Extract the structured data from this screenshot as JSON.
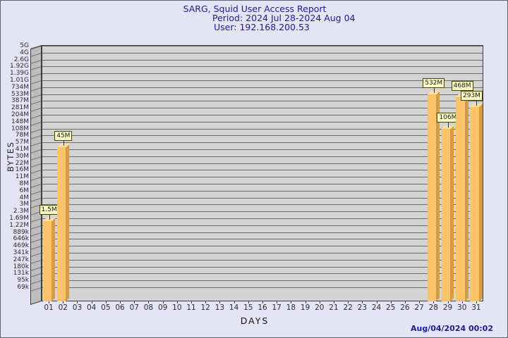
{
  "title": {
    "line1": "SARG, Squid User Access Report",
    "line2": "Period: 2024 Jul 28-2024 Aug 04",
    "line3": "User: 192.168.200.53"
  },
  "footer": {
    "timestamp": "Aug/04/2024 00:02"
  },
  "chart_data": {
    "type": "bar",
    "title": "SARG, Squid User Access Report",
    "subtitle": "Period: 2024 Jul 28-2024 Aug 04",
    "user": "192.168.200.53",
    "xlabel": "DAYS",
    "ylabel": "BYTES",
    "y_scale": "log",
    "ylim_bytes": [
      69000,
      5000000000
    ],
    "grid": "horizontal",
    "y_tick_labels": [
      "5G",
      "4G",
      "2.6G",
      "1.92G",
      "1.39G",
      "1.01G",
      "734M",
      "533M",
      "387M",
      "281M",
      "204M",
      "148M",
      "108M",
      "78M",
      "57M",
      "41M",
      "30M",
      "22M",
      "16M",
      "11M",
      "8M",
      "6M",
      "4M",
      "3M",
      "2.3M",
      "1.69M",
      "1.22M",
      "889k",
      "646k",
      "469k",
      "341k",
      "247k",
      "180k",
      "131k",
      "95k",
      "69k"
    ],
    "x_tick_labels": [
      "01",
      "02",
      "03",
      "04",
      "05",
      "06",
      "07",
      "08",
      "09",
      "10",
      "11",
      "12",
      "13",
      "14",
      "15",
      "16",
      "17",
      "18",
      "19",
      "20",
      "21",
      "22",
      "23",
      "24",
      "25",
      "26",
      "27",
      "28",
      "29",
      "30",
      "31"
    ],
    "bars": [
      {
        "day": "01",
        "label": "1.5M",
        "bytes": 1500000
      },
      {
        "day": "02",
        "label": "45M",
        "bytes": 45000000
      },
      {
        "day": "28",
        "label": "532M",
        "bytes": 532000000
      },
      {
        "day": "29",
        "label": "106M",
        "bytes": 106000000
      },
      {
        "day": "30",
        "label": "468M",
        "bytes": 468000000
      },
      {
        "day": "31",
        "label": "293M",
        "bytes": 293000000
      }
    ],
    "colors": {
      "page_bg": "#e4e4f6",
      "plot_bg": "#d3d3d3",
      "wall_bg": "#bdbdbd",
      "grid": "#6e6e6e",
      "bar_front": "#fcc468",
      "bar_side": "#d79a42",
      "bar_top": "#ffdf9f",
      "value_box_bg": "#ffffc8",
      "value_box_border": "#454500",
      "title_text": "#1c1c99"
    }
  }
}
